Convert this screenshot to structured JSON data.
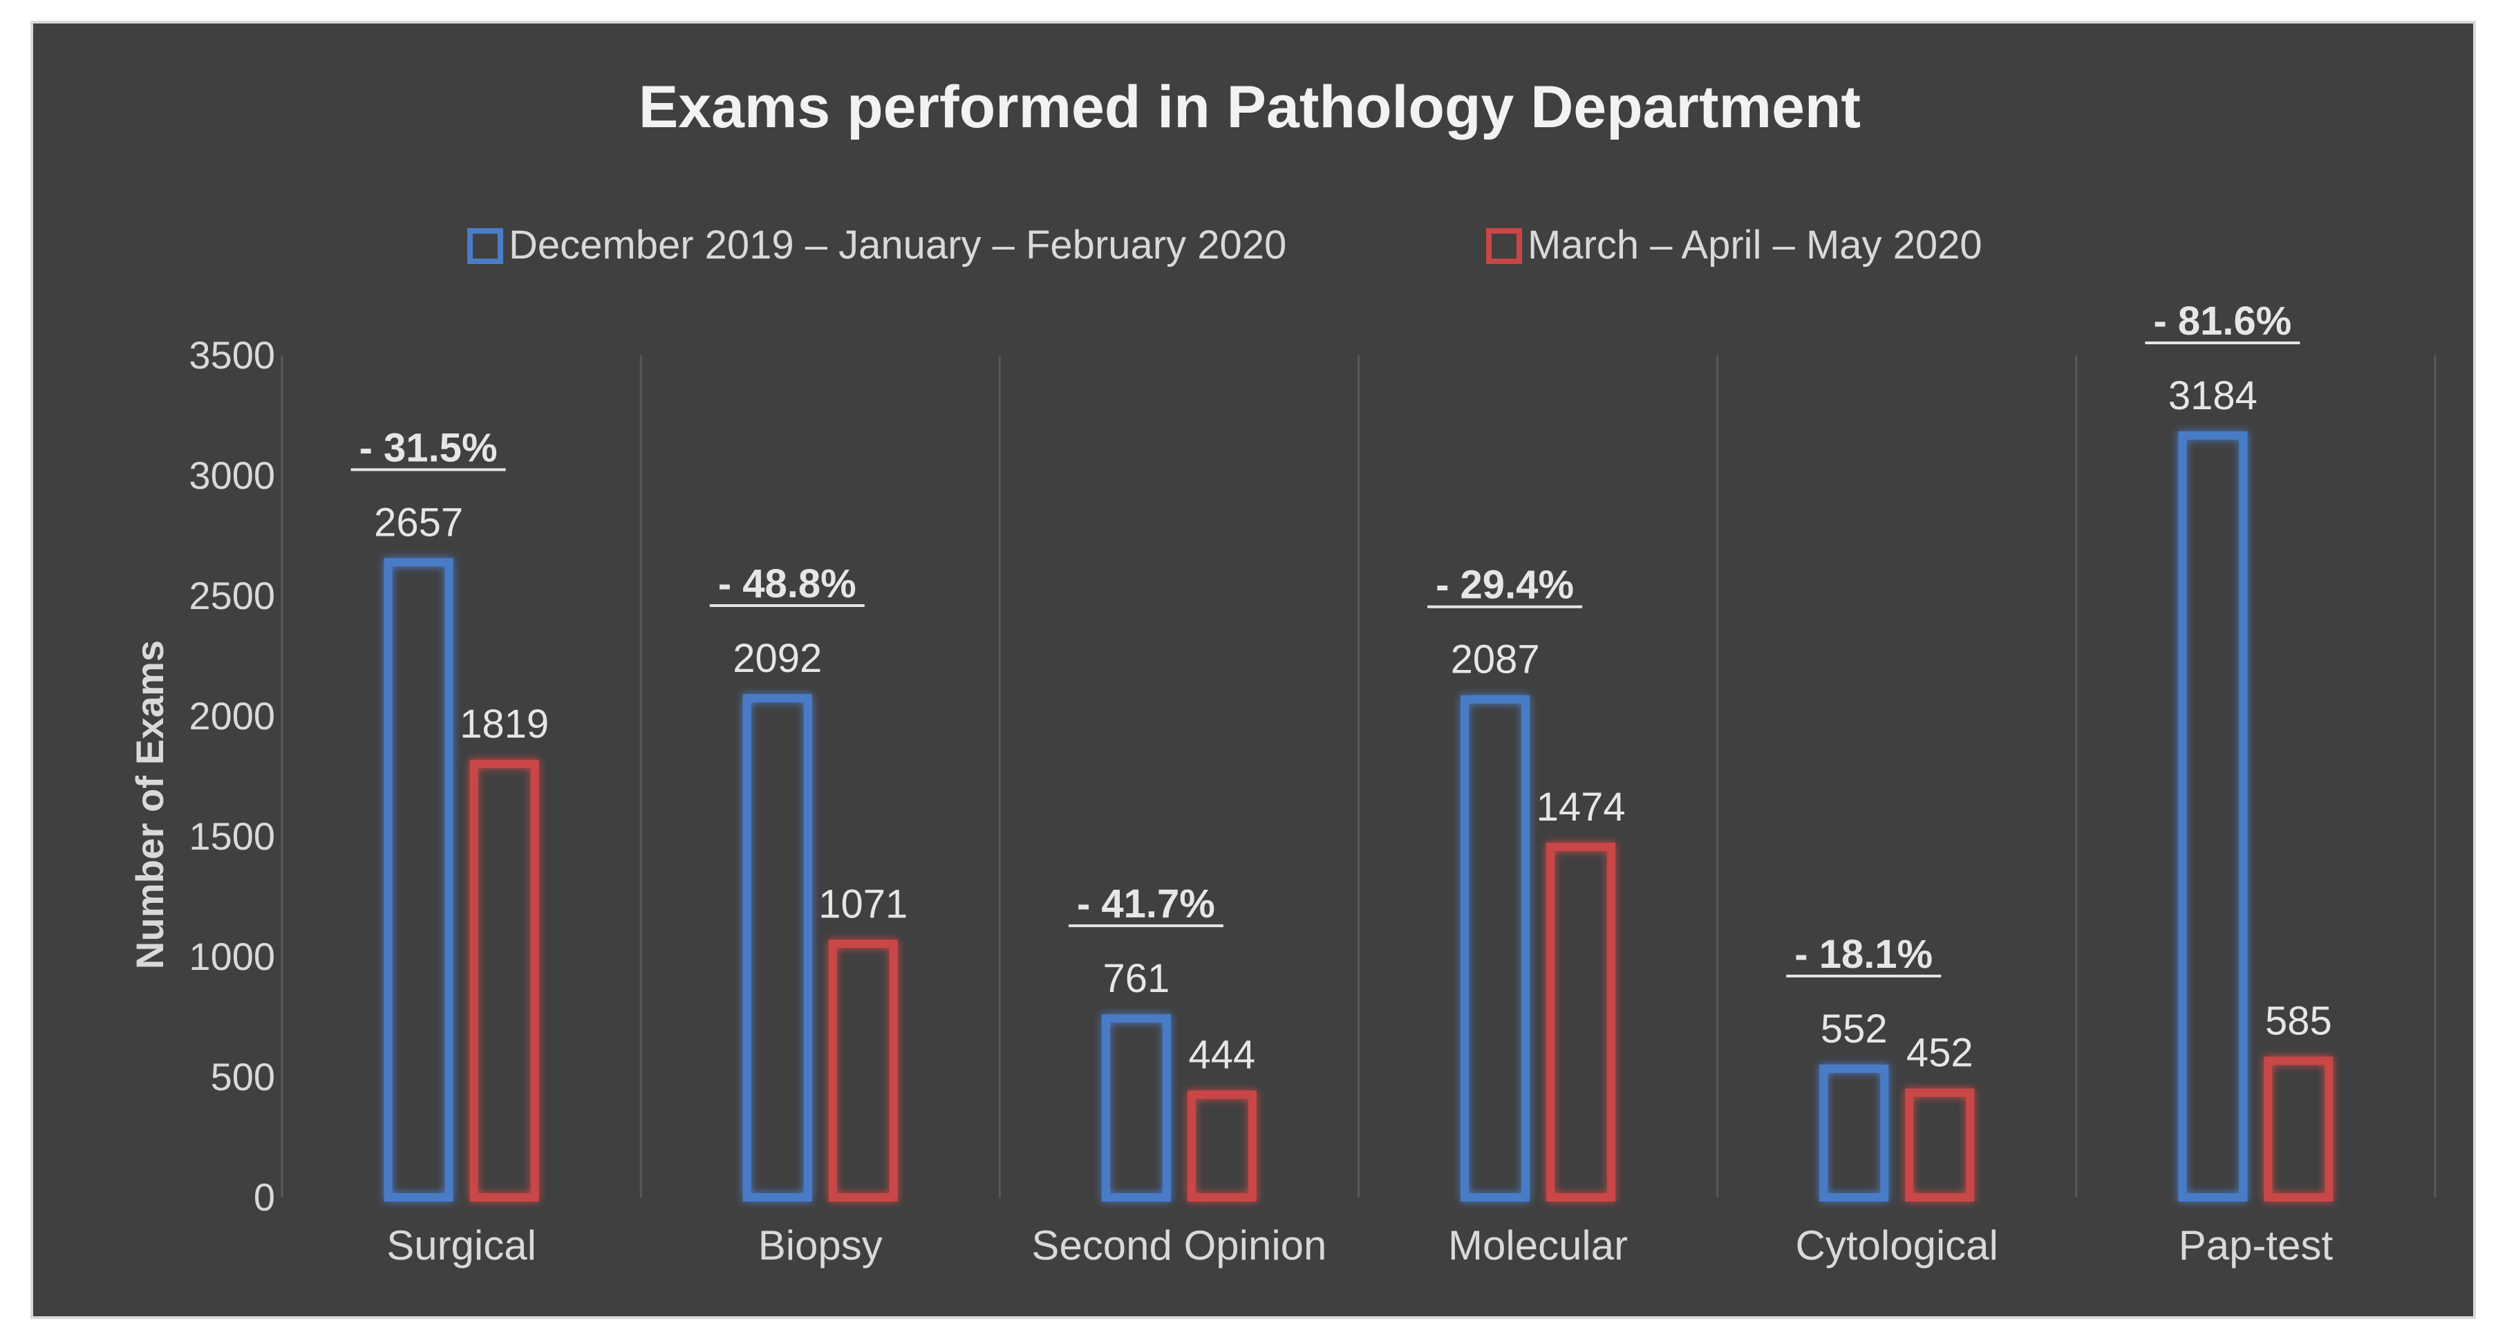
{
  "chart_data": {
    "type": "bar",
    "title": "Exams performed in Pathology Department",
    "ylabel": "Number of Exams",
    "xlabel": "",
    "ylim": [
      0,
      3500
    ],
    "yticks": [
      0,
      500,
      1000,
      1500,
      2000,
      2500,
      3000,
      3500
    ],
    "legend_position": "top",
    "grid": "vertical separators",
    "categories": [
      "Surgical",
      "Biopsy",
      "Second Opinion",
      "Molecular",
      "Cytological",
      "Pap-test"
    ],
    "series": [
      {
        "name": "December 2019 – January – February 2020",
        "color": "#4a7cc7",
        "values": [
          2657,
          2092,
          761,
          2087,
          552,
          3184
        ]
      },
      {
        "name": "March – April – May 2020",
        "color": "#c94646",
        "values": [
          1819,
          1071,
          444,
          1474,
          452,
          585
        ]
      }
    ],
    "annotations": [
      "- 31.5%",
      "- 48.8%",
      "- 41.7%",
      "- 29.4%",
      "- 18.1%",
      "- 81.6%"
    ]
  }
}
